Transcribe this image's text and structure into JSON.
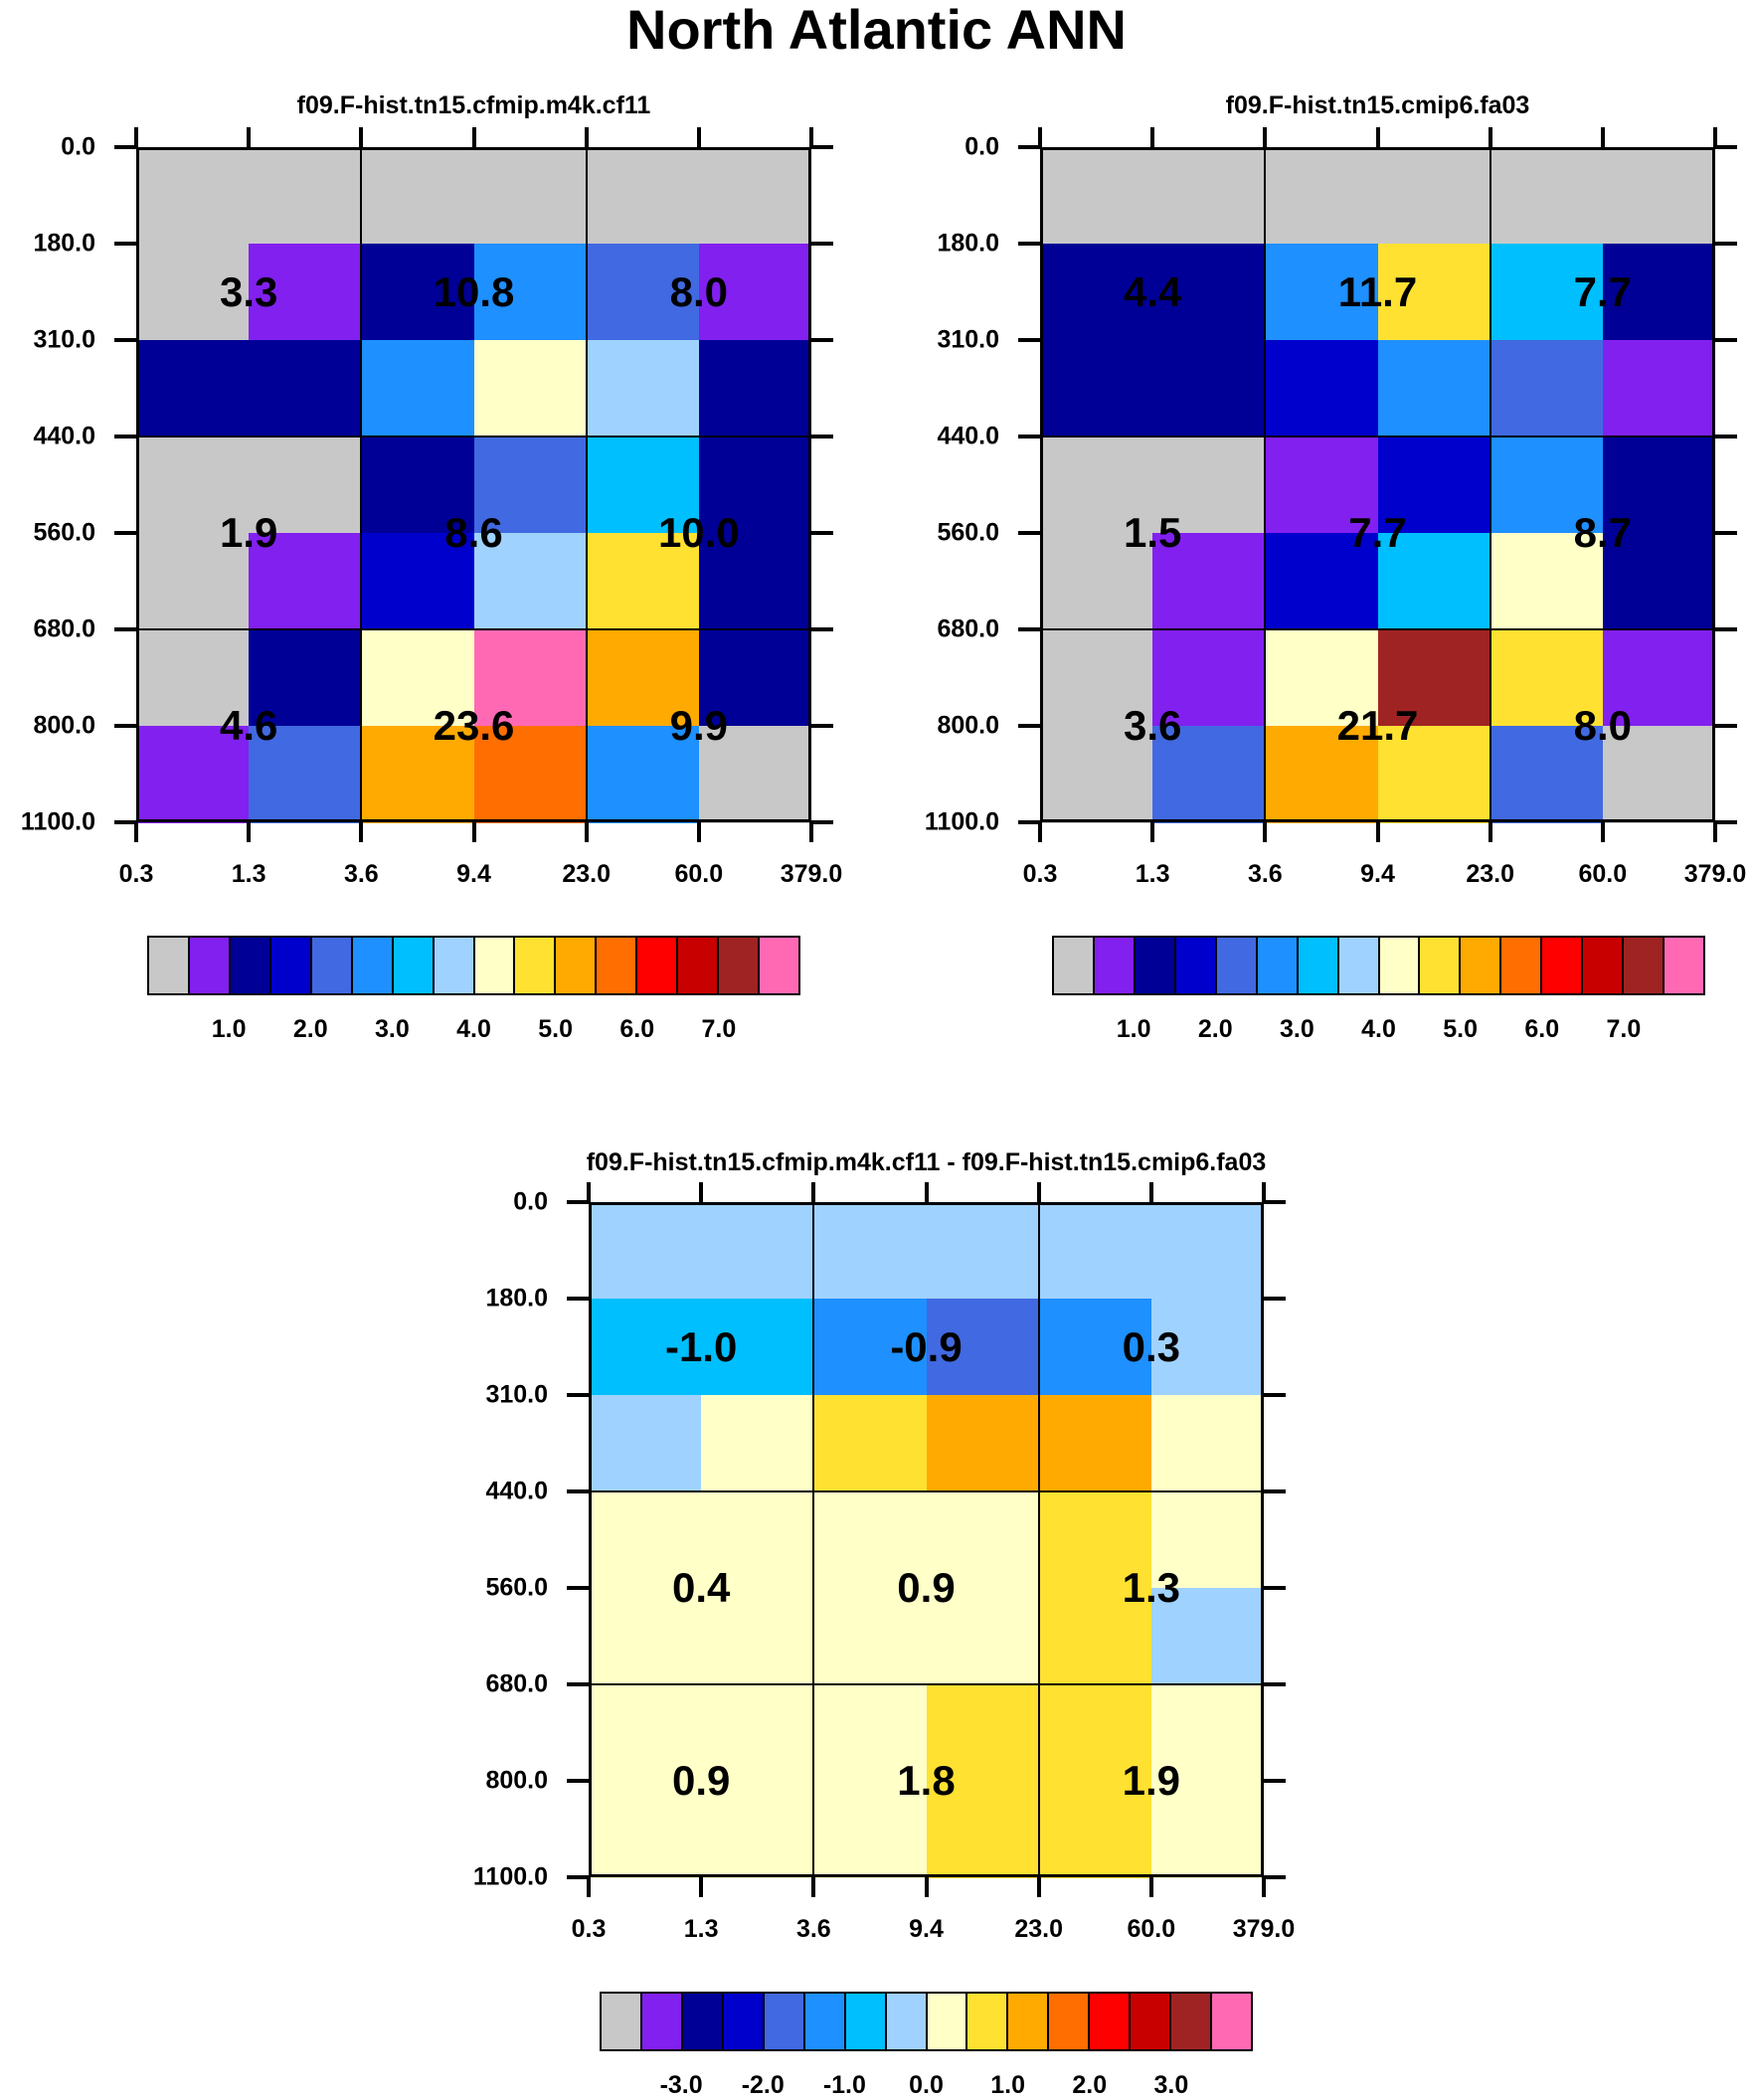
{
  "title": "North Atlantic ANN",
  "palette": [
    "#c8c8c8",
    "#8220f0",
    "#000096",
    "#0000cd",
    "#4169e1",
    "#1e90ff",
    "#00bfff",
    "#a0d2ff",
    "#ffffc8",
    "#ffe132",
    "#ffaa00",
    "#ff6e00",
    "#ff0000",
    "#c80000",
    "#a02323",
    "#ff69b4"
  ],
  "chart_data": [
    {
      "type": "heatmap",
      "title": "f09.F-hist.tn15.cfmip.m4k.cf11",
      "x_ticks": [
        "0.3",
        "1.3",
        "3.6",
        "9.4",
        "23.0",
        "60.0",
        "379.0"
      ],
      "y_ticks": [
        "0.0",
        "180.0",
        "310.0",
        "440.0",
        "560.0",
        "680.0",
        "800.0",
        "1100.0"
      ],
      "color_index_grid": [
        [
          0,
          0,
          0,
          0,
          0,
          0
        ],
        [
          0,
          1,
          2,
          5,
          4,
          1
        ],
        [
          2,
          2,
          5,
          8,
          7,
          2
        ],
        [
          0,
          0,
          2,
          4,
          6,
          2
        ],
        [
          0,
          1,
          3,
          7,
          9,
          2
        ],
        [
          0,
          2,
          8,
          15,
          10,
          2
        ],
        [
          1,
          4,
          10,
          11,
          5,
          0
        ]
      ],
      "cell_values": [
        [
          "3.3",
          "10.8",
          "8.0"
        ],
        [
          "1.9",
          "8.6",
          "10.0"
        ],
        [
          "4.6",
          "23.6",
          "9.9"
        ]
      ],
      "colorbar_labels": [
        "1.0",
        "2.0",
        "3.0",
        "4.0",
        "5.0",
        "6.0",
        "7.0"
      ]
    },
    {
      "type": "heatmap",
      "title": "f09.F-hist.tn15.cmip6.fa03",
      "x_ticks": [
        "0.3",
        "1.3",
        "3.6",
        "9.4",
        "23.0",
        "60.0",
        "379.0"
      ],
      "y_ticks": [
        "0.0",
        "180.0",
        "310.0",
        "440.0",
        "560.0",
        "680.0",
        "800.0",
        "1100.0"
      ],
      "color_index_grid": [
        [
          0,
          0,
          0,
          0,
          0,
          0
        ],
        [
          2,
          2,
          5,
          9,
          6,
          2
        ],
        [
          2,
          2,
          3,
          5,
          4,
          1
        ],
        [
          0,
          0,
          1,
          3,
          5,
          2
        ],
        [
          0,
          1,
          3,
          6,
          8,
          2
        ],
        [
          0,
          1,
          8,
          14,
          9,
          1
        ],
        [
          0,
          4,
          10,
          9,
          4,
          0
        ]
      ],
      "cell_values": [
        [
          "4.4",
          "11.7",
          "7.7"
        ],
        [
          "1.5",
          "7.7",
          "8.7"
        ],
        [
          "3.6",
          "21.7",
          "8.0"
        ]
      ],
      "colorbar_labels": [
        "1.0",
        "2.0",
        "3.0",
        "4.0",
        "5.0",
        "6.0",
        "7.0"
      ]
    },
    {
      "type": "heatmap",
      "title": "f09.F-hist.tn15.cfmip.m4k.cf11 - f09.F-hist.tn15.cmip6.fa03",
      "x_ticks": [
        "0.3",
        "1.3",
        "3.6",
        "9.4",
        "23.0",
        "60.0",
        "379.0"
      ],
      "y_ticks": [
        "0.0",
        "180.0",
        "310.0",
        "440.0",
        "560.0",
        "680.0",
        "800.0",
        "1100.0"
      ],
      "color_index_grid": [
        [
          7,
          7,
          7,
          7,
          7,
          7
        ],
        [
          6,
          6,
          5,
          4,
          5,
          7
        ],
        [
          7,
          8,
          9,
          10,
          10,
          8
        ],
        [
          8,
          8,
          8,
          8,
          9,
          8
        ],
        [
          8,
          8,
          8,
          8,
          9,
          7
        ],
        [
          8,
          8,
          8,
          9,
          9,
          8
        ],
        [
          8,
          8,
          8,
          9,
          9,
          8
        ]
      ],
      "cell_values": [
        [
          "-1.0",
          "-0.9",
          "0.3"
        ],
        [
          "0.4",
          "0.9",
          "1.3"
        ],
        [
          "0.9",
          "1.8",
          "1.9"
        ]
      ],
      "colorbar_labels": [
        "-3.0",
        "-2.0",
        "-1.0",
        "0.0",
        "1.0",
        "2.0",
        "3.0"
      ]
    }
  ]
}
